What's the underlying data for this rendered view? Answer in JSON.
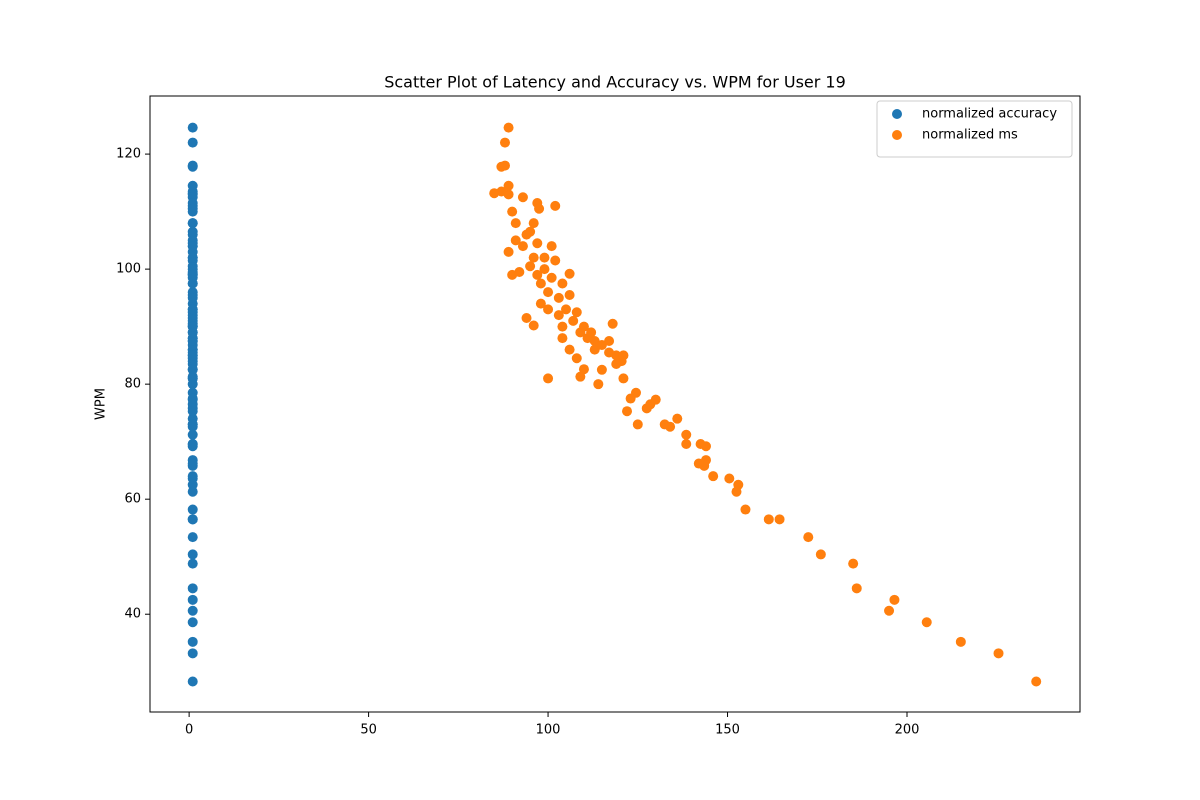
{
  "chart_data": {
    "type": "scatter",
    "title": "Scatter Plot of Latency and Accuracy vs. WPM for User 19",
    "y_label": "WPM",
    "xlim": [
      -10.9,
      248.2
    ],
    "xticks": [
      0,
      50,
      100,
      150,
      200
    ],
    "ylim": [
      23.0,
      130.1
    ],
    "yticks": [
      40,
      60,
      80,
      100,
      120
    ],
    "legend": "upper right",
    "series": [
      {
        "name": "normalized accuracy",
        "color": "#1f77b4",
        "x": [
          1,
          1,
          1,
          1,
          1,
          1,
          1,
          1,
          1,
          1,
          1,
          1,
          1,
          1,
          1,
          1,
          1,
          1,
          1,
          1,
          1,
          1,
          1,
          1,
          1,
          1,
          1,
          1,
          1,
          1,
          1,
          1,
          1,
          1,
          1,
          1,
          1,
          1,
          1,
          1,
          1,
          1,
          1,
          1,
          1,
          1,
          1,
          1,
          1,
          1,
          1,
          1,
          1,
          1,
          1,
          1,
          1,
          1,
          1,
          1,
          1,
          1,
          1,
          1,
          1,
          1,
          1,
          1,
          1,
          1,
          1,
          1,
          1,
          1,
          1,
          1,
          1,
          1,
          1,
          1,
          1,
          1,
          1,
          1,
          1,
          1,
          1,
          1,
          1,
          1,
          1,
          1,
          1,
          1,
          1,
          1,
          1,
          1,
          1,
          1,
          1,
          1,
          1
        ],
        "values": [
          28.3,
          33.2,
          35.2,
          38.6,
          42.5,
          40.6,
          44.5,
          48.8,
          50.4,
          53.4,
          56.5,
          56.5,
          58.2,
          62.5,
          61.3,
          63.6,
          64.0,
          66.8,
          65.8,
          69.2,
          69.6,
          66.2,
          71.2,
          69.6,
          74.0,
          72.6,
          73.0,
          77.3,
          75.8,
          76.5,
          78.5,
          73.0,
          77.5,
          75.3,
          81.0,
          84.0,
          83.5,
          90.5,
          85.5,
          80.0,
          82.5,
          86.0,
          82.6,
          81.3,
          84.5,
          86.0,
          88.0,
          81.0,
          92.5,
          95.5,
          97.5,
          99.2,
          101.5,
          111.0,
          96.0,
          94.0,
          90.2,
          91.5,
          104.5,
          108.0,
          106.0,
          100.5,
          99.5,
          99.0,
          103.0,
          110.0,
          113.0,
          113.5,
          113.2,
          117.8,
          122.0,
          124.6,
          118.0,
          114.5,
          112.5,
          111.5,
          110.5,
          105,
          102,
          98.5,
          95,
          93,
          91,
          89,
          88,
          87.5,
          86.8,
          87.5,
          85,
          85,
          90,
          89,
          92,
          93,
          97.5,
          102,
          104,
          108,
          106.5,
          100,
          104,
          99,
          90
        ]
      },
      {
        "name": "normalized ms",
        "color": "#ff7f0e",
        "x": [
          236,
          225.5,
          215,
          205.5,
          196.5,
          195,
          186,
          185,
          176,
          172.5,
          164.5,
          161.5,
          155,
          153,
          152.5,
          150.5,
          146,
          144,
          143.5,
          144,
          142.5,
          142,
          138.5,
          138.5,
          136,
          134,
          132.5,
          130,
          127.5,
          128.5,
          124.5,
          125,
          123,
          122,
          121,
          120.5,
          119,
          118,
          117,
          114,
          115,
          113,
          110,
          109,
          108,
          106,
          104,
          100,
          108,
          106,
          104,
          106,
          102,
          102,
          100,
          98,
          96,
          94,
          97,
          96,
          94,
          95,
          92,
          90,
          89,
          90,
          89,
          87,
          85,
          87,
          88,
          89,
          88,
          89,
          93,
          97,
          97.5,
          91,
          99,
          101,
          103,
          105,
          107,
          109,
          111,
          113,
          115,
          117,
          119,
          121,
          110,
          112,
          103,
          100,
          98,
          96,
          93,
          91,
          95,
          99,
          101,
          97,
          104
        ],
        "values": [
          28.3,
          33.2,
          35.2,
          38.6,
          42.5,
          40.6,
          44.5,
          48.8,
          50.4,
          53.4,
          56.5,
          56.5,
          58.2,
          62.5,
          61.3,
          63.6,
          64.0,
          66.8,
          65.8,
          69.2,
          69.6,
          66.2,
          71.2,
          69.6,
          74.0,
          72.6,
          73.0,
          77.3,
          75.8,
          76.5,
          78.5,
          73.0,
          77.5,
          75.3,
          81.0,
          84.0,
          83.5,
          90.5,
          85.5,
          80.0,
          82.5,
          86.0,
          82.6,
          81.3,
          84.5,
          86.0,
          88.0,
          81.0,
          92.5,
          95.5,
          97.5,
          99.2,
          101.5,
          111.0,
          96.0,
          94.0,
          90.2,
          91.5,
          104.5,
          108.0,
          106.0,
          100.5,
          99.5,
          99.0,
          103.0,
          110.0,
          113.0,
          113.5,
          113.2,
          117.8,
          122.0,
          124.6,
          118.0,
          114.5,
          112.5,
          111.5,
          110.5,
          105,
          102,
          98.5,
          95,
          93,
          91,
          89,
          88,
          87.5,
          86.8,
          87.5,
          85,
          85,
          90,
          89,
          92,
          93,
          97.5,
          102,
          104,
          108,
          106.5,
          100,
          104,
          99,
          90
        ]
      }
    ]
  }
}
